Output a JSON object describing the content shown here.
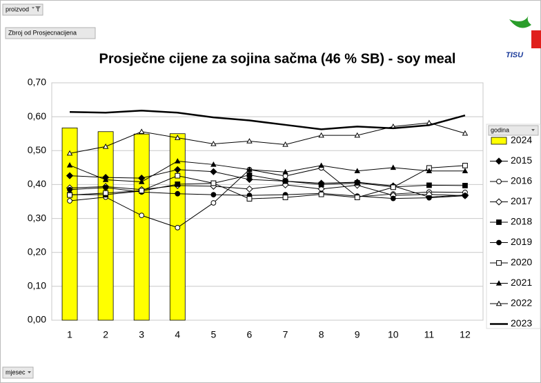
{
  "chart_data": {
    "type": "combo",
    "title": "Prosječne cijene za sojina sačma (46 % SB) - soy meal",
    "filter_button": "proizvod",
    "value_button": "Zbroj od Prosjecnacijena",
    "axis_button": "mjesec",
    "legend_title": "godina",
    "logo": "TISU",
    "categories": [
      1,
      2,
      3,
      4,
      5,
      6,
      7,
      8,
      9,
      10,
      11,
      12
    ],
    "ylim": [
      0,
      0.7
    ],
    "yticks": [
      {
        "value": 0,
        "label": "0,00"
      },
      {
        "value": 0.1,
        "label": "0,10"
      },
      {
        "value": 0.2,
        "label": "0,20"
      },
      {
        "value": 0.3,
        "label": "0,30"
      },
      {
        "value": 0.4,
        "label": "0,40"
      },
      {
        "value": 0.5,
        "label": "0,50"
      },
      {
        "value": 0.6,
        "label": "0,60"
      },
      {
        "value": 0.7,
        "label": "0,70"
      }
    ],
    "grid": true,
    "legend": "right",
    "series": [
      {
        "name": "2024",
        "type": "bar",
        "color": "#ffff00",
        "marker": "none",
        "values": [
          0.567,
          0.556,
          0.549,
          0.55,
          null,
          null,
          null,
          null,
          null,
          null,
          null,
          null
        ]
      },
      {
        "name": "2015",
        "type": "line",
        "color": "#000000",
        "marker": "diamond",
        "values": [
          0.426,
          0.421,
          0.419,
          0.444,
          0.438,
          0.415,
          0.41,
          0.404,
          0.407,
          0.396,
          0.363,
          0.369
        ]
      },
      {
        "name": "2016",
        "type": "line",
        "color": "#000000",
        "marker": "circle-open",
        "values": [
          0.352,
          0.363,
          0.309,
          0.273,
          0.346,
          0.444,
          0.425,
          0.449,
          0.364,
          0.372,
          0.378,
          0.377
        ]
      },
      {
        "name": "2017",
        "type": "line",
        "color": "#000000",
        "marker": "diamond-open",
        "values": [
          0.39,
          0.394,
          0.385,
          0.397,
          0.395,
          0.387,
          0.399,
          0.387,
          0.398,
          0.368,
          0.371,
          0.367
        ]
      },
      {
        "name": "2018",
        "type": "line",
        "color": "#000000",
        "marker": "square",
        "values": [
          0.37,
          0.37,
          0.381,
          0.401,
          0.404,
          0.428,
          0.41,
          0.4,
          0.405,
          0.393,
          0.398,
          0.397
        ]
      },
      {
        "name": "2019",
        "type": "line",
        "color": "#000000",
        "marker": "circle",
        "values": [
          0.385,
          0.391,
          0.378,
          0.373,
          0.37,
          0.368,
          0.37,
          0.374,
          0.366,
          0.359,
          0.361,
          0.367
        ]
      },
      {
        "name": "2020",
        "type": "line",
        "color": "#000000",
        "marker": "square-open",
        "values": [
          0.369,
          0.375,
          0.382,
          0.426,
          0.404,
          0.358,
          0.362,
          0.371,
          0.362,
          0.392,
          0.449,
          0.456
        ]
      },
      {
        "name": "2021",
        "type": "line",
        "color": "#000000",
        "marker": "triangle",
        "values": [
          0.457,
          0.414,
          0.408,
          0.469,
          0.459,
          0.444,
          0.437,
          0.456,
          0.44,
          0.45,
          0.44,
          0.44
        ]
      },
      {
        "name": "2022",
        "type": "line",
        "color": "#000000",
        "marker": "triangle-open",
        "values": [
          0.492,
          0.512,
          0.556,
          0.538,
          0.52,
          0.528,
          0.518,
          0.545,
          0.545,
          0.571,
          0.582,
          0.551
        ]
      },
      {
        "name": "2023",
        "type": "line",
        "color": "#000000",
        "marker": "none",
        "width": 2.5,
        "values": [
          0.614,
          0.612,
          0.618,
          0.612,
          0.598,
          0.589,
          0.576,
          0.563,
          0.571,
          0.566,
          0.575,
          0.604
        ]
      }
    ]
  }
}
